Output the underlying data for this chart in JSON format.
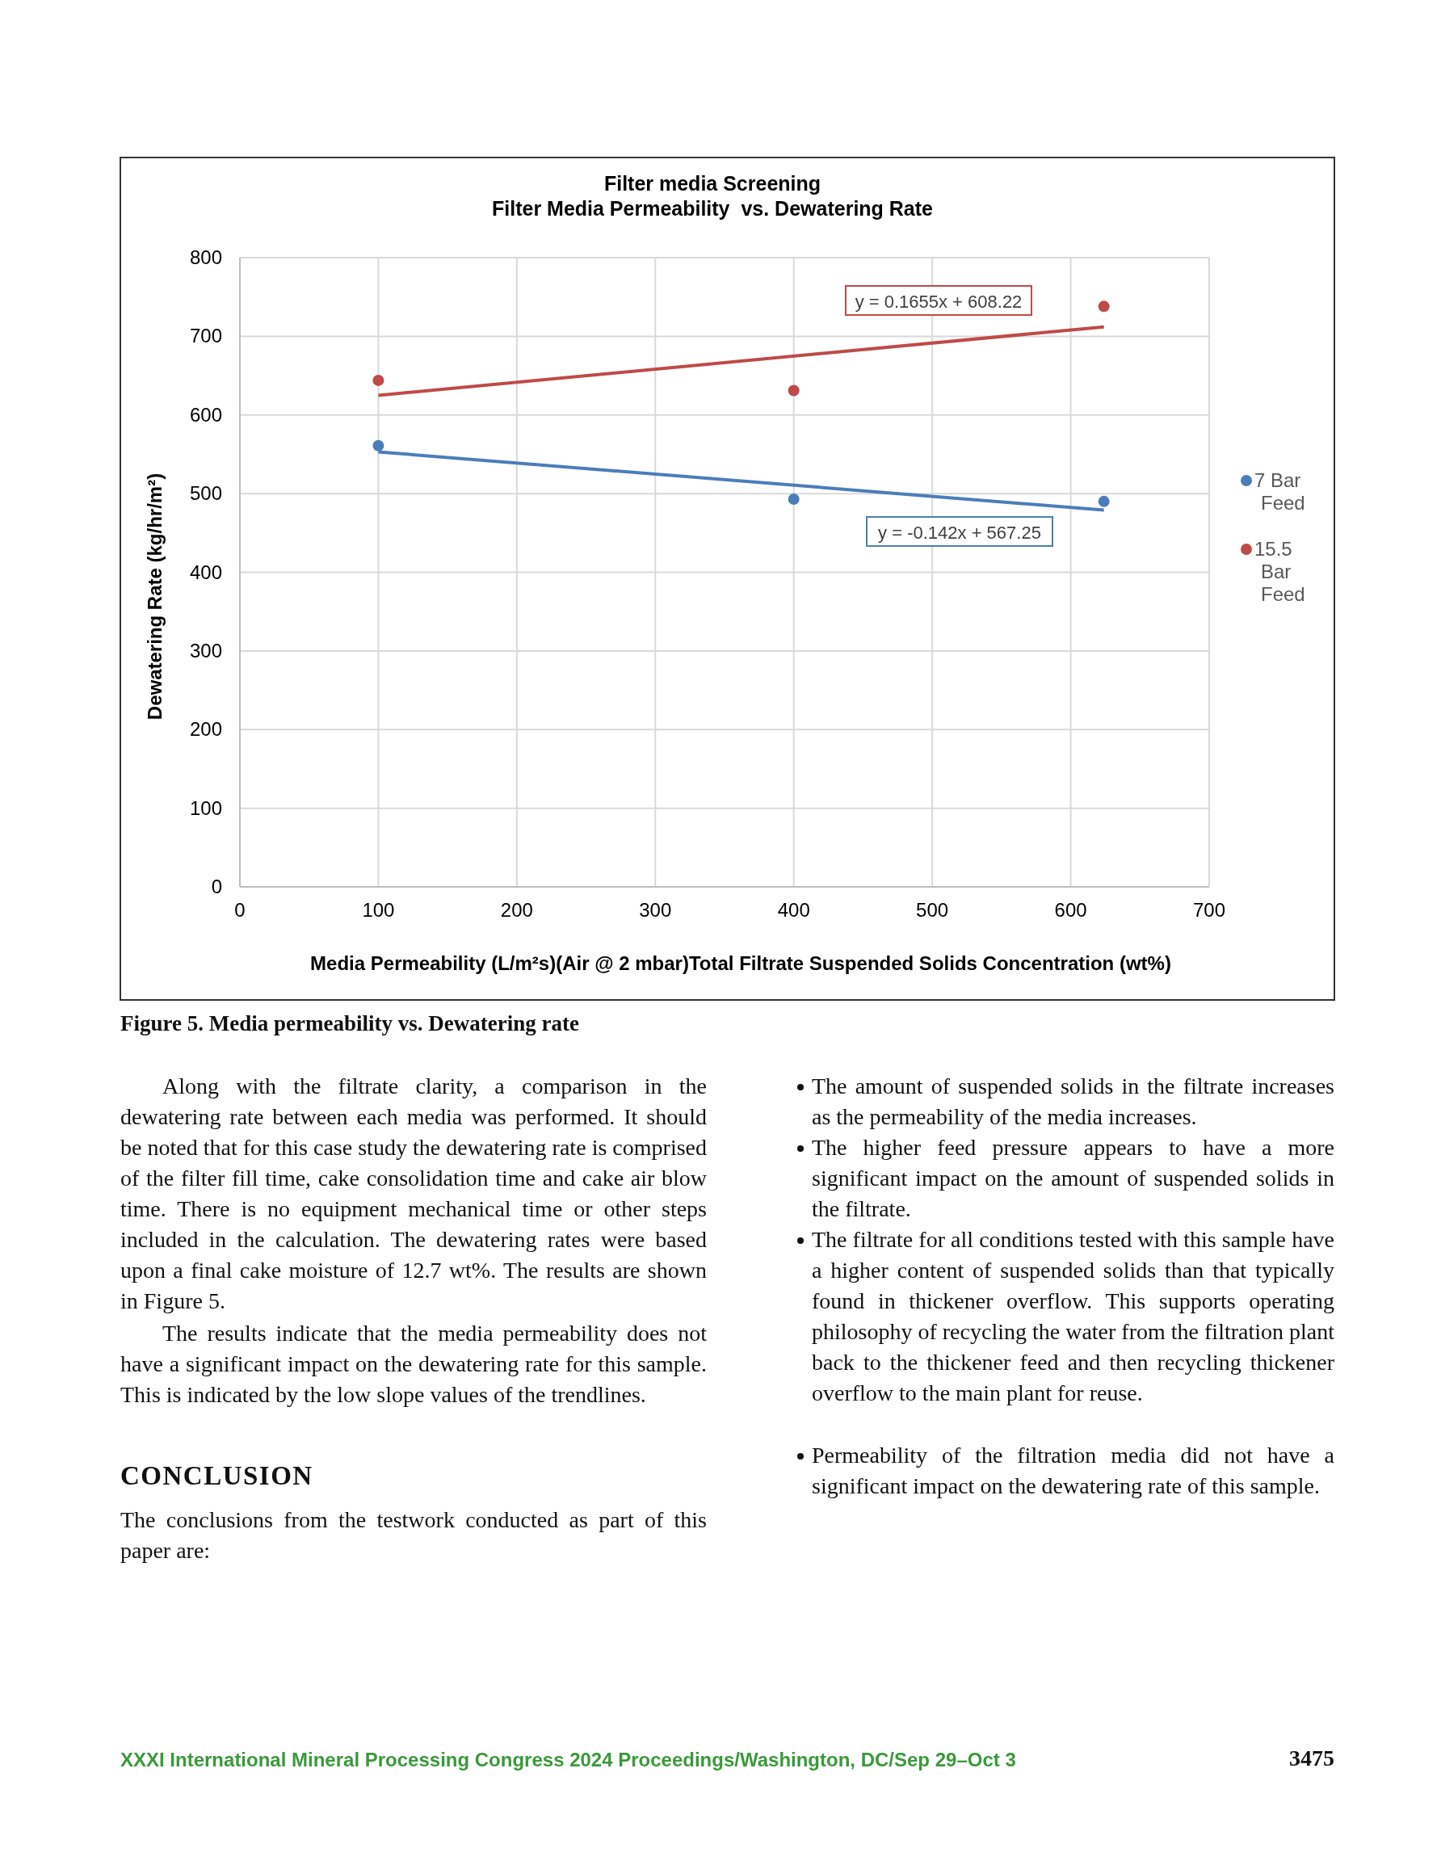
{
  "chart_data": {
    "type": "scatter",
    "title": "Filter media Screening",
    "subtitle": "Filter Media Permeability  vs. Dewatering Rate",
    "xlabel": "Media Permeability (L/m²s)(Air @ 2 mbar)Total Filtrate Suspended Solids Concentration (wt%)",
    "ylabel": "Dewatering Rate (kg/hr/m²)",
    "xlim": [
      0,
      700
    ],
    "xticks": [
      0,
      100,
      200,
      300,
      400,
      500,
      600,
      700
    ],
    "ylim": [
      0,
      800
    ],
    "yticks": [
      0,
      100,
      200,
      300,
      400,
      500,
      600,
      700,
      800
    ],
    "grid": true,
    "legend": "right",
    "marker": "circle",
    "series": [
      {
        "name": "7 Bar Feed",
        "color": "#4a7ebb",
        "x": [
          100,
          400,
          624
        ],
        "values": [
          561,
          493,
          490
        ]
      },
      {
        "name": "15.5 Bar Feed",
        "color": "#be4b48",
        "x": [
          100,
          400,
          624
        ],
        "values": [
          644,
          631,
          738
        ]
      },
      {
        "type": "line",
        "color": "#4a7ebb",
        "marker": "none",
        "x": [
          100,
          624
        ],
        "values": [
          553,
          479
        ]
      },
      {
        "type": "line",
        "color": "#be4b48",
        "marker": "none",
        "x": [
          100,
          624
        ],
        "values": [
          625,
          712
        ]
      }
    ],
    "annotations": [
      "y = 0.1655x + 608.22",
      "y = -0.142x + 567.25",
      "Figure 5. Media permeability vs. Dewatering rate",
      "Along with the filtrate clarity, a comparison in the dewatering rate between each media was performed. It should be noted that for this case study the dewatering rate is comprised of the filter fill time, cake consolidation time and cake air blow time. There is no equipment mechanical time or other steps included in the calculation. The dewatering rates were based upon a final cake moisture of 12.7 wt%. The results are shown in Figure 5.",
      "The results indicate that the media permeability does not have a significant impact on the dewatering rate for this sample. This is indicated by the low slope values of the trendlines.",
      "CONCLUSION",
      "The conclusions from the testwork conducted as part of this paper are:",
      "The amount of suspended solids in the filtrate increases as the permeability of the media increases.",
      "The higher feed pressure appears to have a more significant impact on the amount of suspended solids in the filtrate.",
      "The filtrate for all conditions tested with this sample have a higher content of suspended solids than that typically found in thickener overflow. This supports operating philosophy of recycling the water from the filtration plant back to the thickener feed and then recycling thickener overflow to the main plant for reuse.",
      "Permeability of the filtration media did not have a significant impact on the dewatering rate of this sample.",
      "XXXI International Mineral Processing Congress 2024 Proceedings/Washington, DC/Sep 29–Oct 3",
      "3475"
    ]
  }
}
